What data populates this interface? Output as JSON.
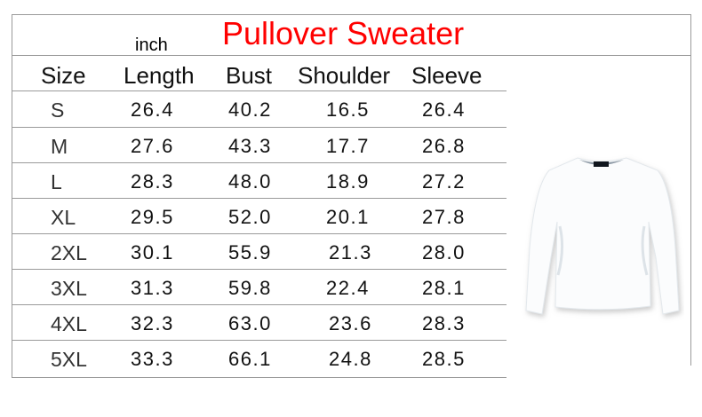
{
  "title": "Pullover Sweater",
  "unit": "inch",
  "title_color": "#ff0000",
  "headers": [
    "Size",
    "Length",
    "Bust",
    "Shoulder",
    "Sleeve"
  ],
  "rows": [
    [
      "S",
      "26.4",
      "40.2",
      "16.5",
      "26.4"
    ],
    [
      "M",
      "27.6",
      "43.3",
      "17.7",
      "26.8"
    ],
    [
      "L",
      "28.3",
      "48.0",
      "18.9",
      "27.2"
    ],
    [
      "XL",
      "29.5",
      "52.0",
      "20.1",
      "27.8"
    ],
    [
      "2XL",
      "30.1",
      "55.9",
      "21.3",
      "28.0"
    ],
    [
      "3XL",
      "31.3",
      "59.8",
      "22.4",
      "28.1"
    ],
    [
      "4XL",
      "32.3",
      "63.0",
      "23.6",
      "28.3"
    ],
    [
      "5XL",
      "33.3",
      "66.1",
      "24.8",
      "28.5"
    ]
  ],
  "image": {
    "icon": "white-crewneck-sweatshirt"
  }
}
